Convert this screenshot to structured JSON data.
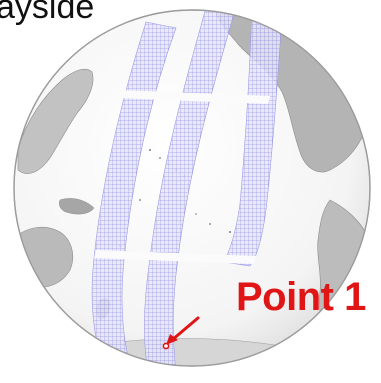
{
  "caption": "ayside",
  "map": {
    "projection": "orthographic",
    "ocean_color": "#f6f6f6",
    "land_color": "#b4b4b4",
    "swath_color": "#7c7ce6",
    "marker_color": "#e01515",
    "swath_count": 3
  },
  "marker": {
    "label": "Point 1",
    "icon": "arrow-pointer-icon"
  }
}
